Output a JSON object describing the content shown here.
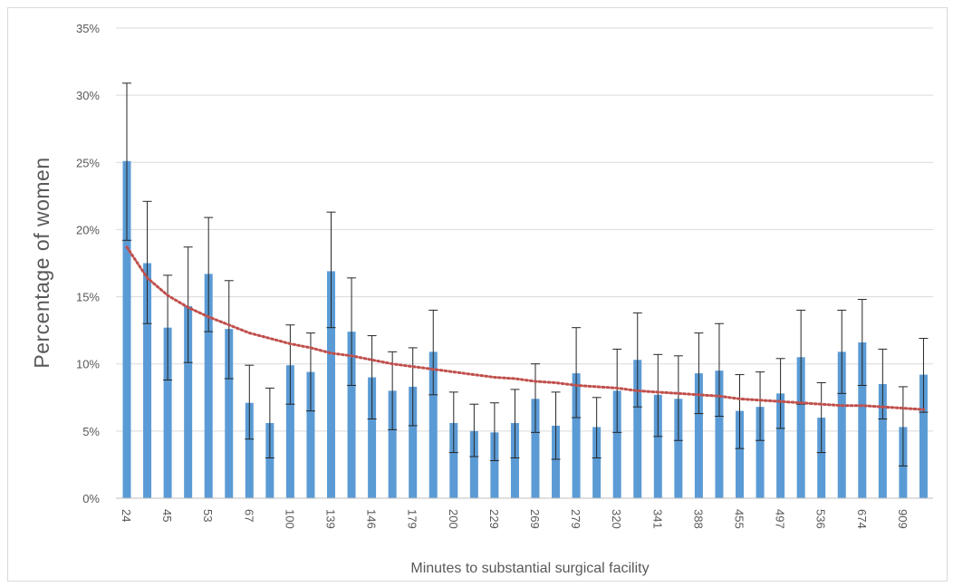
{
  "chart_data": {
    "type": "bar",
    "xlabel": "Minutes to substantial surgical facility",
    "ylabel": "Percentage of women",
    "ylim": [
      0,
      35
    ],
    "yticks": [
      "0%",
      "5%",
      "10%",
      "15%",
      "20%",
      "25%",
      "30%",
      "35%"
    ],
    "grid": true,
    "legend": "none",
    "bar_color": "#5b9bd5",
    "trend_color": "#c0504d",
    "trend_style": "dotted logarithmic",
    "categories": [
      "24",
      "",
      "45",
      "",
      "53",
      "",
      "67",
      "",
      "100",
      "",
      "139",
      "",
      "146",
      "",
      "179",
      "",
      "200",
      "",
      "229",
      "",
      "269",
      "",
      "279",
      "",
      "320",
      "",
      "341",
      "",
      "388",
      "",
      "455",
      "",
      "497",
      "",
      "536",
      "",
      "674",
      "",
      "909",
      ""
    ],
    "series": [
      {
        "values": [
          25.1,
          17.5,
          12.7,
          14.3,
          16.7,
          12.6,
          7.1,
          5.6,
          9.9,
          9.4,
          16.9,
          12.4,
          9.0,
          8.0,
          8.3,
          10.9,
          5.6,
          5.0,
          4.9,
          5.6,
          7.4,
          5.4,
          9.3,
          5.3,
          8.0,
          10.3,
          7.7,
          7.4,
          9.3,
          9.5,
          6.5,
          6.8,
          7.8,
          10.5,
          6.0,
          10.9,
          11.6,
          8.5,
          5.3,
          9.2
        ],
        "error_upper": [
          30.9,
          22.1,
          16.6,
          18.7,
          20.9,
          16.2,
          9.9,
          8.2,
          12.9,
          12.3,
          21.3,
          16.4,
          12.1,
          10.9,
          11.2,
          14.0,
          7.9,
          7.0,
          7.1,
          8.1,
          10.0,
          7.9,
          12.7,
          7.5,
          11.1,
          13.8,
          10.7,
          10.6,
          12.3,
          13.0,
          9.2,
          9.4,
          10.4,
          14.0,
          8.6,
          14.0,
          14.8,
          11.1,
          8.3,
          11.9
        ],
        "error_lower": [
          19.2,
          13.0,
          8.8,
          10.1,
          12.4,
          8.9,
          4.4,
          3.0,
          7.0,
          6.5,
          12.7,
          8.4,
          5.9,
          5.1,
          5.4,
          7.7,
          3.4,
          3.1,
          2.8,
          3.0,
          4.9,
          2.9,
          6.0,
          3.0,
          4.9,
          6.8,
          4.6,
          4.3,
          6.3,
          6.1,
          3.7,
          4.3,
          5.2,
          7.0,
          3.4,
          7.8,
          8.4,
          5.9,
          2.4,
          6.4
        ]
      }
    ],
    "trendline": [
      18.7,
      16.4,
      15.1,
      14.2,
      13.5,
      12.9,
      12.3,
      11.9,
      11.5,
      11.2,
      10.8,
      10.6,
      10.3,
      10.0,
      9.8,
      9.6,
      9.4,
      9.2,
      9.0,
      8.9,
      8.7,
      8.6,
      8.4,
      8.3,
      8.2,
      8.0,
      7.9,
      7.8,
      7.7,
      7.6,
      7.4,
      7.3,
      7.2,
      7.1,
      7.0,
      6.9,
      6.9,
      6.8,
      6.7,
      6.6
    ]
  }
}
